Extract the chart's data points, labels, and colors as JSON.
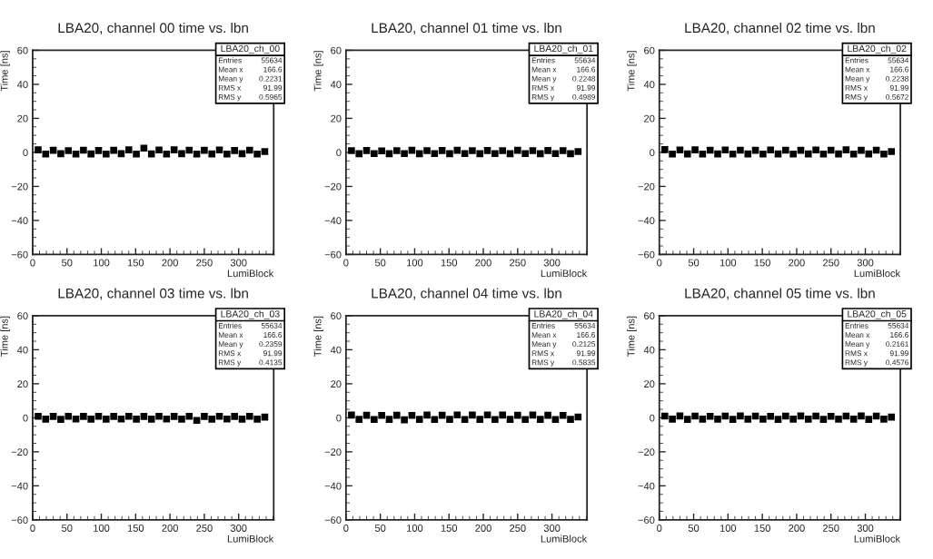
{
  "chart_data": [
    {
      "type": "scatter",
      "title": "LBA20, channel 00 time vs. lbn",
      "xlabel": "LumiBlock",
      "ylabel": "Time [ns]",
      "annotations": [
        "LBA20_ch_00",
        "Entries",
        "55634",
        "Mean x",
        "166.6",
        "Mean y",
        "0.2231",
        "RMS x",
        "91.99",
        "RMS y",
        "0.5965"
      ],
      "xlim": [
        0,
        351
      ],
      "ylim": [
        -60,
        60
      ],
      "xticks": [
        0,
        50,
        100,
        150,
        200,
        250,
        300
      ],
      "yticks": [
        -60,
        -40,
        -20,
        0,
        20,
        40,
        60
      ],
      "marker": "square",
      "grid": false,
      "series": [
        {
          "color": "#000000",
          "x": [
            8,
            19,
            30,
            41,
            52,
            63,
            74,
            85,
            96,
            107,
            118,
            129,
            140,
            151,
            162,
            173,
            184,
            195,
            206,
            217,
            228,
            239,
            250,
            261,
            272,
            283,
            294,
            305,
            316,
            327,
            338
          ],
          "values": [
            1.5,
            -1,
            1.2,
            -0.8,
            1,
            -1,
            1.3,
            -0.9,
            1.1,
            -1,
            1.2,
            -0.8,
            1.5,
            -1,
            2.5,
            -0.9,
            1.4,
            -1,
            1.5,
            -0.8,
            1.3,
            -1,
            1.2,
            -0.9,
            1.4,
            -1,
            1.1,
            -0.8,
            1.3,
            -1,
            0.5
          ]
        }
      ]
    },
    {
      "type": "scatter",
      "title": "LBA20, channel 01 time vs. lbn",
      "xlabel": "LumiBlock",
      "ylabel": "Time [ns]",
      "annotations": [
        "LBA20_ch_01",
        "Entries",
        "55634",
        "Mean x",
        "166.6",
        "Mean y",
        "0.2248",
        "RMS x",
        "91.99",
        "RMS y",
        "0.4989"
      ],
      "xlim": [
        0,
        351
      ],
      "ylim": [
        -60,
        60
      ],
      "xticks": [
        0,
        50,
        100,
        150,
        200,
        250,
        300
      ],
      "yticks": [
        -60,
        -40,
        -20,
        0,
        20,
        40,
        60
      ],
      "marker": "square",
      "grid": false,
      "series": [
        {
          "color": "#000000",
          "x": [
            8,
            19,
            30,
            41,
            52,
            63,
            74,
            85,
            96,
            107,
            118,
            129,
            140,
            151,
            162,
            173,
            184,
            195,
            206,
            217,
            228,
            239,
            250,
            261,
            272,
            283,
            294,
            305,
            316,
            327,
            338
          ],
          "values": [
            1,
            -0.8,
            1.1,
            -0.7,
            0.9,
            -0.8,
            1,
            -0.7,
            1.2,
            -0.8,
            1,
            -0.7,
            1.1,
            -0.8,
            1.2,
            -0.7,
            1,
            -0.8,
            1.1,
            -0.7,
            1,
            -0.8,
            1.2,
            -0.7,
            1,
            -0.8,
            1.1,
            -0.7,
            1,
            -0.8,
            0.5
          ]
        }
      ]
    },
    {
      "type": "scatter",
      "title": "LBA20, channel 02 time vs. lbn",
      "xlabel": "LumiBlock",
      "ylabel": "Time [ns]",
      "annotations": [
        "LBA20_ch_02",
        "Entries",
        "55634",
        "Mean x",
        "166.6",
        "Mean y",
        "0.2238",
        "RMS x",
        "91.99",
        "RMS y",
        "0.5672"
      ],
      "xlim": [
        0,
        351
      ],
      "ylim": [
        -60,
        60
      ],
      "xticks": [
        0,
        50,
        100,
        150,
        200,
        250,
        300
      ],
      "yticks": [
        -60,
        -40,
        -20,
        0,
        20,
        40,
        60
      ],
      "marker": "square",
      "grid": false,
      "series": [
        {
          "color": "#000000",
          "x": [
            8,
            19,
            30,
            41,
            52,
            63,
            74,
            85,
            96,
            107,
            118,
            129,
            140,
            151,
            162,
            173,
            184,
            195,
            206,
            217,
            228,
            239,
            250,
            261,
            272,
            283,
            294,
            305,
            316,
            327,
            338
          ],
          "values": [
            1.6,
            -1,
            1.4,
            -0.9,
            1.5,
            -1,
            1.3,
            -0.9,
            1.4,
            -1,
            1.3,
            -0.9,
            1.2,
            -1,
            1.4,
            -0.9,
            1.3,
            -1,
            1.2,
            -0.9,
            1.4,
            -1,
            1.3,
            -0.9,
            1.5,
            -1,
            1.2,
            -0.9,
            1.3,
            -1,
            0.5
          ]
        }
      ]
    },
    {
      "type": "scatter",
      "title": "LBA20, channel 03 time vs. lbn",
      "xlabel": "LumiBlock",
      "ylabel": "Time [ns]",
      "annotations": [
        "LBA20_ch_03",
        "Entries",
        "55634",
        "Mean x",
        "166.6",
        "Mean y",
        "0.2359",
        "RMS x",
        "91.99",
        "RMS y",
        "0.4135"
      ],
      "xlim": [
        0,
        351
      ],
      "ylim": [
        -60,
        60
      ],
      "xticks": [
        0,
        50,
        100,
        150,
        200,
        250,
        300
      ],
      "yticks": [
        -60,
        -40,
        -20,
        0,
        20,
        40,
        60
      ],
      "marker": "square",
      "grid": false,
      "series": [
        {
          "color": "#000000",
          "x": [
            8,
            19,
            30,
            41,
            52,
            63,
            74,
            85,
            96,
            107,
            118,
            129,
            140,
            151,
            162,
            173,
            184,
            195,
            206,
            217,
            228,
            239,
            250,
            261,
            272,
            283,
            294,
            305,
            316,
            327,
            338
          ],
          "values": [
            0.9,
            -0.8,
            0.8,
            -0.9,
            0.9,
            -0.7,
            0.8,
            -0.8,
            0.9,
            -0.8,
            0.8,
            -0.7,
            0.9,
            -0.8,
            0.8,
            -0.8,
            0.9,
            -0.7,
            0.8,
            -0.8,
            0.9,
            -1.5,
            0.8,
            -0.8,
            0.9,
            -0.7,
            0.8,
            -0.8,
            0.9,
            -0.8,
            0.4
          ]
        }
      ]
    },
    {
      "type": "scatter",
      "title": "LBA20, channel 04 time vs. lbn",
      "xlabel": "LumiBlock",
      "ylabel": "Time [ns]",
      "annotations": [
        "LBA20_ch_04",
        "Entries",
        "55634",
        "Mean x",
        "166.6",
        "Mean y",
        "0.2125",
        "RMS x",
        "91.99",
        "RMS y",
        "0.5835"
      ],
      "xlim": [
        0,
        351
      ],
      "ylim": [
        -60,
        60
      ],
      "xticks": [
        0,
        50,
        100,
        150,
        200,
        250,
        300
      ],
      "yticks": [
        -60,
        -40,
        -20,
        0,
        20,
        40,
        60
      ],
      "marker": "square",
      "grid": false,
      "series": [
        {
          "color": "#000000",
          "x": [
            8,
            19,
            30,
            41,
            52,
            63,
            74,
            85,
            96,
            107,
            118,
            129,
            140,
            151,
            162,
            173,
            184,
            195,
            206,
            217,
            228,
            239,
            250,
            261,
            272,
            283,
            294,
            305,
            316,
            327,
            338
          ],
          "values": [
            1.6,
            -0.9,
            1.5,
            -1,
            1.4,
            -0.9,
            1.5,
            -1.2,
            1.4,
            -0.9,
            1.6,
            -1,
            1.5,
            -0.9,
            1.7,
            -1,
            1.6,
            -0.9,
            1.7,
            -1,
            1.6,
            -0.9,
            1.5,
            -1,
            1.6,
            -0.9,
            1.5,
            -1,
            1.4,
            -0.9,
            0.5
          ]
        }
      ]
    },
    {
      "type": "scatter",
      "title": "LBA20, channel 05 time vs. lbn",
      "xlabel": "LumiBlock",
      "ylabel": "Time [ns]",
      "annotations": [
        "LBA20_ch_05",
        "Entries",
        "55634",
        "Mean x",
        "166.6",
        "Mean y",
        "0.2161",
        "RMS x",
        "91.99",
        "RMS y",
        "0.4576"
      ],
      "xlim": [
        0,
        351
      ],
      "ylim": [
        -60,
        60
      ],
      "xticks": [
        0,
        50,
        100,
        150,
        200,
        250,
        300
      ],
      "yticks": [
        -60,
        -40,
        -20,
        0,
        20,
        40,
        60
      ],
      "marker": "square",
      "grid": false,
      "series": [
        {
          "color": "#000000",
          "x": [
            8,
            19,
            30,
            41,
            52,
            63,
            74,
            85,
            96,
            107,
            118,
            129,
            140,
            151,
            162,
            173,
            184,
            195,
            206,
            217,
            228,
            239,
            250,
            261,
            272,
            283,
            294,
            305,
            316,
            327,
            338
          ],
          "values": [
            1,
            -0.8,
            1.1,
            -0.9,
            1,
            -0.8,
            0.9,
            -0.8,
            1,
            -0.9,
            1.1,
            -0.8,
            1,
            -0.8,
            0.9,
            -0.9,
            1,
            -0.8,
            1.1,
            -0.8,
            1,
            -0.9,
            0.9,
            -0.8,
            1,
            -0.8,
            1.1,
            -0.9,
            1,
            -0.8,
            0.4
          ]
        }
      ]
    }
  ]
}
